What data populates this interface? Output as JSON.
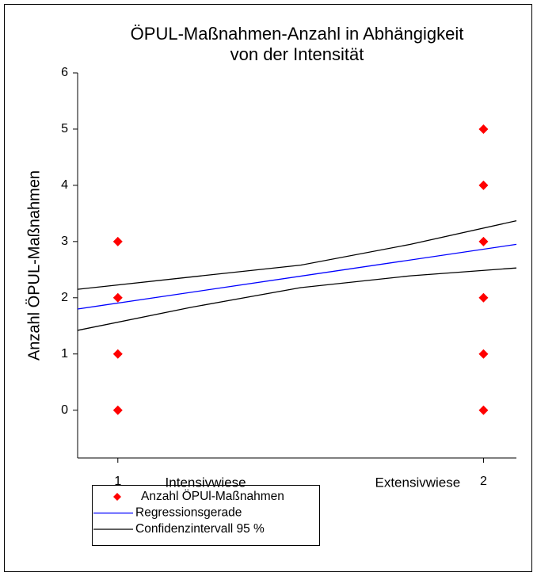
{
  "chart_data": {
    "type": "scatter",
    "title": [
      "ÖPUL-Maßnahmen-Anzahl in Abhängigkeit",
      "von der Intensität"
    ],
    "y_label": "Anzahl ÖPUL-Maßnahmen",
    "xlim": [
      0.89,
      2.09
    ],
    "xticks": [
      1,
      2
    ],
    "ylim": [
      -0.85,
      6
    ],
    "yticks": [
      0,
      1,
      2,
      3,
      4,
      5,
      6
    ],
    "annotations": [
      {
        "text": "Intensivwiese",
        "x": 1.24
      },
      {
        "text": "Extensivwiese",
        "x": 1.82
      }
    ],
    "series": [
      {
        "name": "Anzahl ÖPUl-Maßnahmen",
        "kind": "scatter",
        "color": "#ff0000",
        "x": [
          1,
          1,
          1,
          1,
          2,
          2,
          2,
          2,
          2,
          2
        ],
        "values": [
          3,
          2,
          1,
          0,
          5,
          4,
          3,
          2,
          1,
          0
        ]
      },
      {
        "name": "Regressionsgerade",
        "kind": "line",
        "color": "#0000ff",
        "x": [
          0.89,
          2.09
        ],
        "values": [
          1.8,
          2.95
        ]
      },
      {
        "name": "Confidenzintervall 95 %",
        "kind": "band",
        "color": "#000000",
        "x": [
          0.89,
          1.2,
          1.5,
          1.8,
          2.09
        ],
        "upper": [
          2.15,
          2.37,
          2.58,
          2.95,
          3.37
        ],
        "lower": [
          1.42,
          1.83,
          2.18,
          2.39,
          2.53
        ]
      }
    ],
    "grid": false
  }
}
